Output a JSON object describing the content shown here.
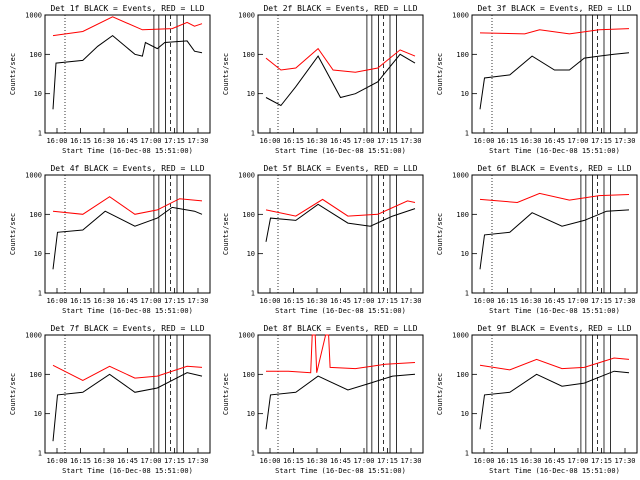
{
  "chart_data": [
    {
      "type": "line",
      "title": "Det 1f BLACK = Events, RED = LLD",
      "xlabel": "Start Time (16-Dec-08 15:51:00)",
      "ylabel": "Counts/sec",
      "red": [
        [
          0,
          300
        ],
        [
          20,
          380
        ],
        [
          40,
          900
        ],
        [
          60,
          420
        ],
        [
          80,
          450
        ],
        [
          90,
          650
        ],
        [
          95,
          520
        ],
        [
          100,
          600
        ]
      ],
      "black": [
        [
          0,
          4
        ],
        [
          2,
          60
        ],
        [
          20,
          70
        ],
        [
          30,
          160
        ],
        [
          40,
          300
        ],
        [
          55,
          100
        ],
        [
          60,
          90
        ],
        [
          62,
          200
        ],
        [
          70,
          140
        ],
        [
          75,
          200
        ],
        [
          90,
          220
        ],
        [
          95,
          120
        ],
        [
          100,
          110
        ]
      ]
    },
    {
      "type": "line",
      "title": "Det 2f BLACK = Events, RED = LLD",
      "xlabel": "Start Time (16-Dec-08 15:51:00)",
      "ylabel": "Counts/sec",
      "red": [
        [
          0,
          80
        ],
        [
          10,
          40
        ],
        [
          20,
          45
        ],
        [
          35,
          140
        ],
        [
          45,
          40
        ],
        [
          60,
          35
        ],
        [
          75,
          45
        ],
        [
          90,
          130
        ],
        [
          100,
          90
        ]
      ],
      "black": [
        [
          0,
          8
        ],
        [
          10,
          5
        ],
        [
          20,
          15
        ],
        [
          35,
          90
        ],
        [
          50,
          8
        ],
        [
          60,
          10
        ],
        [
          75,
          20
        ],
        [
          90,
          100
        ],
        [
          100,
          60
        ]
      ]
    },
    {
      "type": "line",
      "title": "Det 3f BLACK = Events, RED = LLD",
      "xlabel": "Start Time (16-Dec-08 15:51:00)",
      "ylabel": "Counts/sec",
      "red": [
        [
          0,
          350
        ],
        [
          30,
          330
        ],
        [
          40,
          420
        ],
        [
          60,
          330
        ],
        [
          80,
          420
        ],
        [
          100,
          450
        ]
      ],
      "black": [
        [
          0,
          4
        ],
        [
          3,
          25
        ],
        [
          20,
          30
        ],
        [
          35,
          90
        ],
        [
          50,
          40
        ],
        [
          60,
          40
        ],
        [
          70,
          80
        ],
        [
          80,
          90
        ],
        [
          90,
          100
        ],
        [
          100,
          110
        ]
      ]
    },
    {
      "type": "line",
      "title": "Det 4f BLACK = Events, RED = LLD",
      "xlabel": "Start Time (16-Dec-08 15:51:00)",
      "ylabel": "Counts/sec",
      "red": [
        [
          0,
          120
        ],
        [
          20,
          100
        ],
        [
          38,
          280
        ],
        [
          55,
          100
        ],
        [
          70,
          130
        ],
        [
          85,
          250
        ],
        [
          100,
          220
        ]
      ],
      "black": [
        [
          0,
          4
        ],
        [
          3,
          35
        ],
        [
          20,
          40
        ],
        [
          35,
          120
        ],
        [
          55,
          50
        ],
        [
          70,
          80
        ],
        [
          80,
          150
        ],
        [
          95,
          120
        ],
        [
          100,
          100
        ]
      ]
    },
    {
      "type": "line",
      "title": "Det 5f BLACK = Events, RED = LLD",
      "xlabel": "Start Time (16-Dec-08 15:51:00)",
      "ylabel": "Counts/sec",
      "red": [
        [
          0,
          130
        ],
        [
          20,
          90
        ],
        [
          38,
          240
        ],
        [
          55,
          90
        ],
        [
          75,
          100
        ],
        [
          95,
          220
        ],
        [
          100,
          200
        ]
      ],
      "black": [
        [
          0,
          20
        ],
        [
          3,
          80
        ],
        [
          20,
          70
        ],
        [
          35,
          180
        ],
        [
          55,
          60
        ],
        [
          70,
          50
        ],
        [
          85,
          90
        ],
        [
          100,
          140
        ]
      ]
    },
    {
      "type": "line",
      "title": "Det 6f BLACK = Events, RED = LLD",
      "xlabel": "Start Time (16-Dec-08 15:51:00)",
      "ylabel": "Counts/sec",
      "red": [
        [
          0,
          240
        ],
        [
          25,
          200
        ],
        [
          40,
          340
        ],
        [
          60,
          230
        ],
        [
          80,
          300
        ],
        [
          100,
          320
        ]
      ],
      "black": [
        [
          0,
          4
        ],
        [
          3,
          30
        ],
        [
          20,
          35
        ],
        [
          35,
          110
        ],
        [
          55,
          50
        ],
        [
          70,
          70
        ],
        [
          85,
          120
        ],
        [
          100,
          130
        ]
      ]
    },
    {
      "type": "line",
      "title": "Det 7f BLACK = Events, RED = LLD",
      "xlabel": "Start Time (16-Dec-08 15:51:00)",
      "ylabel": "Counts/sec",
      "red": [
        [
          0,
          170
        ],
        [
          20,
          70
        ],
        [
          38,
          160
        ],
        [
          55,
          80
        ],
        [
          70,
          90
        ],
        [
          90,
          160
        ],
        [
          100,
          150
        ]
      ],
      "black": [
        [
          0,
          2
        ],
        [
          3,
          30
        ],
        [
          20,
          35
        ],
        [
          38,
          100
        ],
        [
          55,
          35
        ],
        [
          70,
          45
        ],
        [
          90,
          110
        ],
        [
          100,
          90
        ]
      ]
    },
    {
      "type": "line",
      "title": "Det 8f BLACK = Events, RED = LLD",
      "xlabel": "Start Time (16-Dec-08 15:51:00)",
      "ylabel": "Counts/sec",
      "red": [
        [
          0,
          120
        ],
        [
          15,
          120
        ],
        [
          30,
          110
        ],
        [
          31,
          1000
        ],
        [
          33,
          1000
        ],
        [
          34,
          110
        ],
        [
          40,
          1000
        ],
        [
          42,
          1000
        ],
        [
          43,
          150
        ],
        [
          60,
          140
        ],
        [
          80,
          180
        ],
        [
          100,
          200
        ]
      ],
      "black": [
        [
          0,
          4
        ],
        [
          3,
          30
        ],
        [
          20,
          35
        ],
        [
          35,
          90
        ],
        [
          55,
          40
        ],
        [
          70,
          60
        ],
        [
          85,
          90
        ],
        [
          100,
          100
        ]
      ]
    },
    {
      "type": "line",
      "title": "Det 9f BLACK = Events, RED = LLD",
      "xlabel": "Start Time (16-Dec-08 15:51:00)",
      "ylabel": "Counts/sec",
      "red": [
        [
          0,
          170
        ],
        [
          20,
          130
        ],
        [
          38,
          240
        ],
        [
          55,
          140
        ],
        [
          70,
          150
        ],
        [
          90,
          260
        ],
        [
          100,
          240
        ]
      ],
      "black": [
        [
          0,
          4
        ],
        [
          3,
          30
        ],
        [
          20,
          35
        ],
        [
          38,
          100
        ],
        [
          55,
          50
        ],
        [
          70,
          60
        ],
        [
          90,
          120
        ],
        [
          100,
          110
        ]
      ]
    }
  ],
  "axis": {
    "x_ticks": [
      "16:00",
      "16:15",
      "16:30",
      "16:45",
      "17:00",
      "17:15",
      "17:30"
    ],
    "y_ticks": [
      "1",
      "10",
      "100",
      "1000"
    ],
    "ylim": [
      1,
      1000
    ],
    "y_scale": "log"
  },
  "colors": {
    "events": "#000000",
    "lld": "#ff0000"
  }
}
